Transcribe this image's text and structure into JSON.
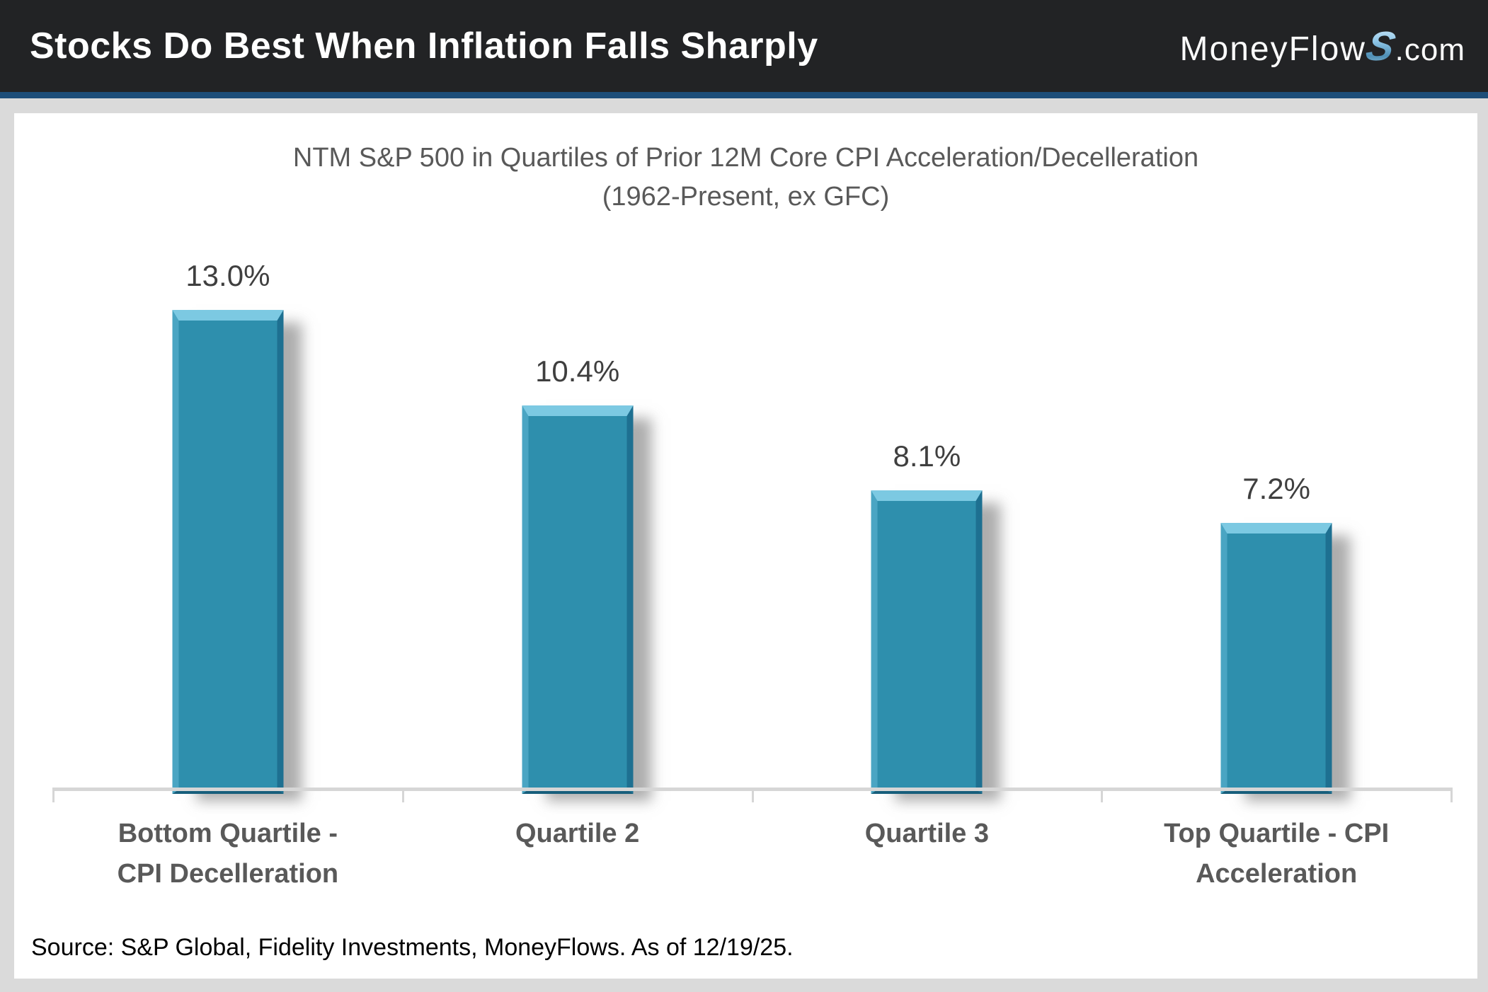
{
  "header": {
    "title": "Stocks Do Best When Inflation Falls Sharply",
    "logo": {
      "prefix": "MoneyFlow",
      "s": "S",
      "suffix": ".com"
    }
  },
  "chart_data": {
    "type": "bar",
    "title": "NTM S&P 500 in Quartiles of Prior 12M Core CPI Acceleration/Decelleration",
    "subtitle": "(1962-Present, ex GFC)",
    "categories": [
      "Bottom Quartile - CPI Decelleration",
      "Quartile 2",
      "Quartile 3",
      "Top Quartile - CPI Acceleration"
    ],
    "values": [
      13.0,
      10.4,
      8.1,
      7.2
    ],
    "value_labels": [
      "13.0%",
      "10.4%",
      "8.1%",
      "7.2%"
    ],
    "xlabel": "",
    "ylabel": "",
    "ylim": [
      0,
      14
    ],
    "grid": false,
    "legend_position": "none",
    "bar_color": "#2e8fad",
    "bar_bevel_highlight": "#7cc9e2",
    "bar_bevel_shadow": "#1e7091",
    "shadow_color": "#9a9a9a"
  },
  "footer": {
    "source": "Source: S&P Global, Fidelity Investments, MoneyFlows. As of 12/19/25."
  },
  "colors": {
    "header_bg": "#222325",
    "header_rule": "#1d4e79",
    "page_bg": "#dadada",
    "panel_bg": "#ffffff",
    "axis": "#d6d6d6",
    "title_text": "#595959",
    "value_text": "#3f3f3f"
  }
}
